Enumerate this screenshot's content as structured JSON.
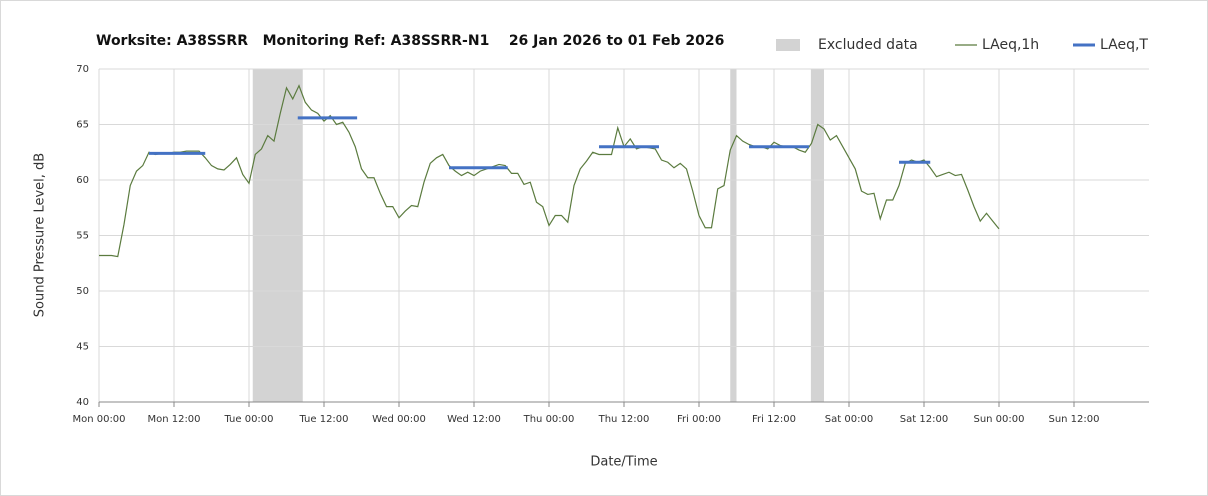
{
  "chart_data": {
    "type": "line",
    "title": "Worksite: A38SSRR   Monitoring Ref: A38SSRR-N1    26 Jan 2026 to 01 Feb 2026",
    "x_label": "Date/Time",
    "y_label": "Sound Pressure Level, dB",
    "xlim": [
      0,
      168
    ],
    "ylim": [
      40,
      70
    ],
    "yticks": [
      40,
      45,
      50,
      55,
      60,
      65,
      70
    ],
    "xticks": [
      {
        "value": 0,
        "label": "Mon 00:00"
      },
      {
        "value": 12,
        "label": "Mon 12:00"
      },
      {
        "value": 24,
        "label": "Tue 00:00"
      },
      {
        "value": 36,
        "label": "Tue 12:00"
      },
      {
        "value": 48,
        "label": "Wed 00:00"
      },
      {
        "value": 60,
        "label": "Wed 12:00"
      },
      {
        "value": 72,
        "label": "Thu 00:00"
      },
      {
        "value": 84,
        "label": "Thu 12:00"
      },
      {
        "value": 96,
        "label": "Fri 00:00"
      },
      {
        "value": 108,
        "label": "Fri 12:00"
      },
      {
        "value": 120,
        "label": "Sat 00:00"
      },
      {
        "value": 132,
        "label": "Sat 12:00"
      },
      {
        "value": 144,
        "label": "Sun 00:00"
      },
      {
        "value": 156,
        "label": "Sun 12:00"
      }
    ],
    "grid": true,
    "legend_position": "top-right",
    "excluded": {
      "name": "Excluded data",
      "color": "#d3d3d3",
      "ranges": [
        [
          24.6,
          32.6
        ],
        [
          101,
          102
        ],
        [
          113.9,
          116
        ]
      ]
    },
    "series": [
      {
        "name": "LAeq,1h",
        "color": "#5b7b3f",
        "x": [
          0,
          1,
          2,
          3,
          4,
          5,
          6,
          7,
          8,
          9,
          10,
          11,
          12,
          13,
          14,
          15,
          16,
          17,
          18,
          19,
          20,
          21,
          22,
          23,
          24,
          25,
          26,
          27,
          28,
          29,
          30,
          31,
          32,
          33,
          34,
          35,
          36,
          37,
          38,
          39,
          40,
          41,
          42,
          43,
          44,
          45,
          46,
          47,
          48,
          49,
          50,
          51,
          52,
          53,
          54,
          55,
          56,
          57,
          58,
          59,
          60,
          61,
          62,
          63,
          64,
          65,
          66,
          67,
          68,
          69,
          70,
          71,
          72,
          73,
          74,
          75,
          76,
          77,
          78,
          79,
          80,
          81,
          82,
          83,
          84,
          85,
          86,
          87,
          88,
          89,
          90,
          91,
          92,
          93,
          94,
          95,
          96,
          97,
          98,
          99,
          100,
          101,
          102,
          103,
          104,
          105,
          106,
          107,
          108,
          109,
          110,
          111,
          112,
          113,
          114,
          115,
          116,
          117,
          118,
          119,
          120,
          121,
          122,
          123,
          124,
          125,
          126,
          127,
          128,
          129,
          130,
          131,
          132,
          133,
          134,
          135,
          136,
          137,
          138,
          139,
          140,
          141,
          142,
          143,
          144
        ],
        "values": [
          53.2,
          53.2,
          53.2,
          53.1,
          56,
          59.5,
          60.8,
          61.3,
          62.5,
          62.3,
          62.4,
          62.4,
          62.5,
          62.5,
          62.6,
          62.6,
          62.6,
          62.0,
          61.3,
          61.0,
          60.9,
          61.4,
          62.0,
          60.5,
          59.7,
          62.3,
          62.8,
          64.0,
          63.5,
          66.0,
          68.3,
          67.3,
          68.5,
          67.0,
          66.3,
          66.0,
          65.3,
          65.8,
          65.0,
          65.2,
          64.3,
          63.0,
          61.0,
          60.2,
          60.2,
          58.8,
          57.6,
          57.6,
          56.6,
          57.2,
          57.7,
          57.6,
          59.8,
          61.5,
          62.0,
          62.3,
          61.3,
          60.8,
          60.4,
          60.7,
          60.4,
          60.8,
          61.0,
          61.2,
          61.4,
          61.3,
          60.6,
          60.6,
          59.6,
          59.8,
          58.0,
          57.6,
          55.9,
          56.8,
          56.8,
          56.2,
          59.5,
          61.0,
          61.7,
          62.5,
          62.3,
          62.3,
          62.3,
          64.7,
          63.0,
          63.7,
          62.8,
          63.0,
          62.9,
          62.8,
          61.8,
          61.6,
          61.1,
          61.5,
          61.0,
          59.0,
          56.8,
          55.7,
          55.7,
          59.2,
          59.5,
          62.7,
          64.0,
          63.5,
          63.2,
          63.0,
          63.0,
          62.8,
          63.4,
          63.1,
          63.0,
          63.0,
          62.7,
          62.5,
          63.3,
          65.0,
          64.6,
          63.6,
          64.0,
          63.0,
          62.0,
          61.0,
          59.0,
          58.7,
          58.8,
          56.5,
          58.2,
          58.2,
          59.5,
          61.5,
          61.8,
          61.6,
          61.8,
          61.1,
          60.3,
          60.5,
          60.7,
          60.4,
          60.5,
          59.1,
          57.6,
          56.3,
          57.0,
          56.3,
          55.6
        ]
      },
      {
        "name": "LAeq,T",
        "color": "#4472c4",
        "segments": [
          {
            "x": [
              8,
              17
            ],
            "value": 62.4
          },
          {
            "x": [
              31.8,
              41.3
            ],
            "value": 65.6
          },
          {
            "x": [
              56,
              65.4
            ],
            "value": 61.1
          },
          {
            "x": [
              80,
              89.6
            ],
            "value": 63.0
          },
          {
            "x": [
              104,
              113.6
            ],
            "value": 63.0
          },
          {
            "x": [
              128,
              133
            ],
            "value": 61.6
          }
        ]
      }
    ]
  }
}
